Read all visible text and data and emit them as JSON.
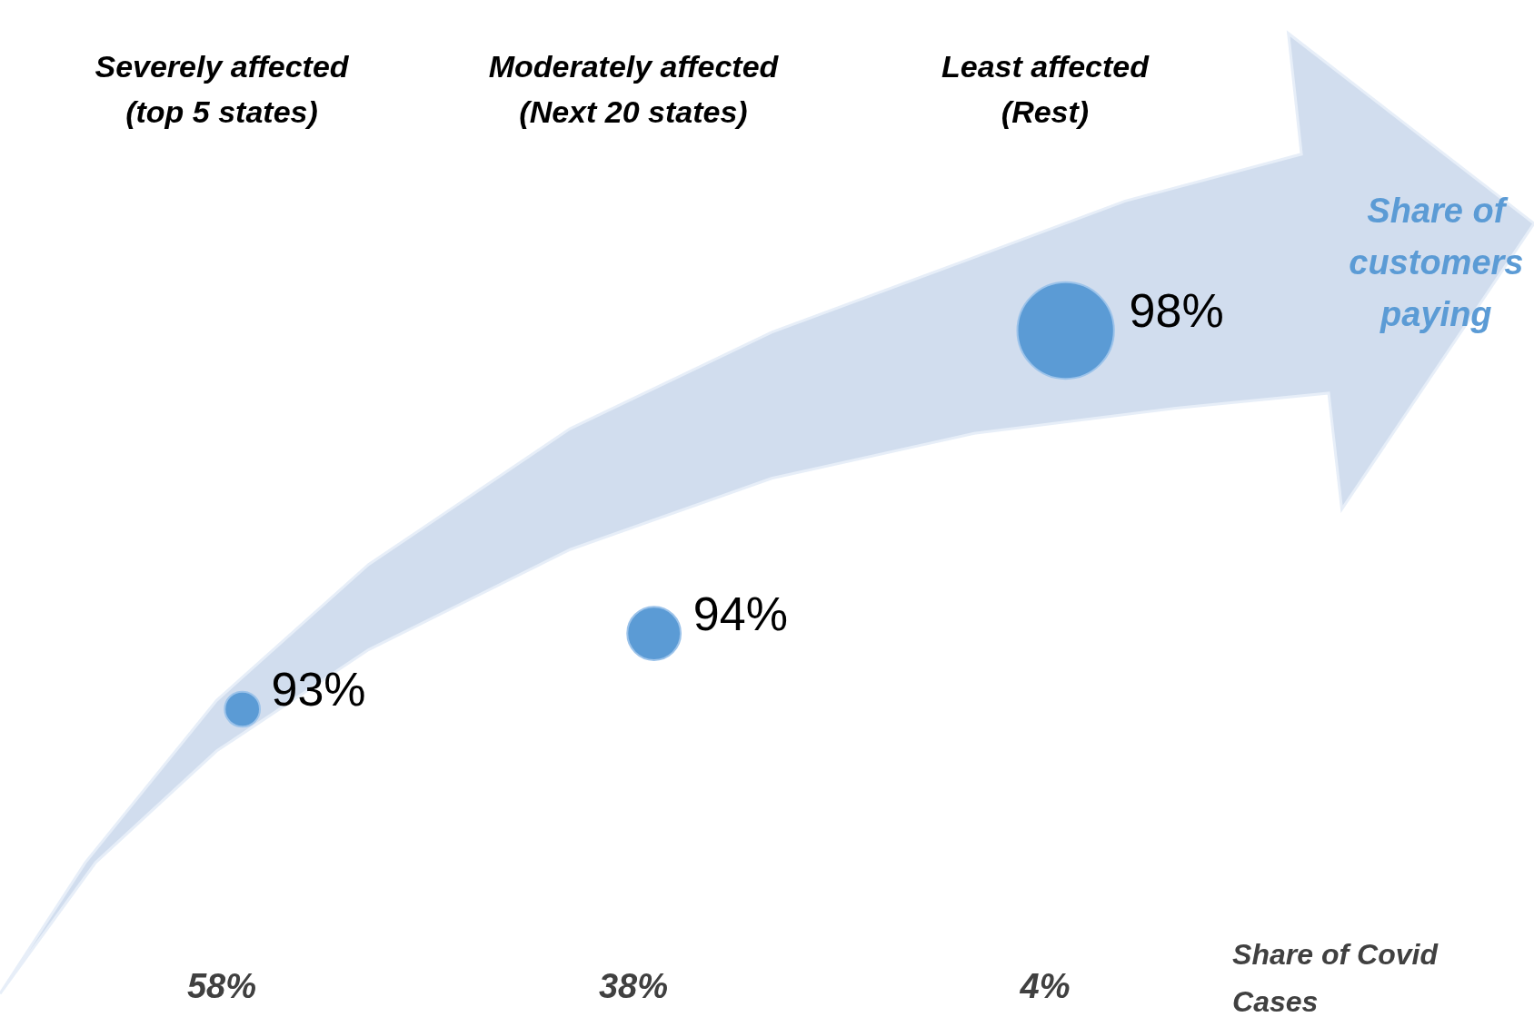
{
  "chart_data": {
    "type": "other",
    "categories": [
      "Severely affected\n(top 5 states)",
      "Moderately affected\n(Next 20 states)",
      "Least affected\n(Rest)"
    ],
    "series": [
      {
        "name": "Share of\ncustomers\npaying",
        "color": "#5b9bd5",
        "values": [
          93,
          94,
          98
        ],
        "value_labels": [
          "93%",
          "94%",
          "98%"
        ]
      },
      {
        "name": "Share of Covid\nCases",
        "color": "#404040",
        "values": [
          58,
          38,
          4
        ],
        "value_labels": [
          "58%",
          "38%",
          "4%"
        ]
      }
    ]
  }
}
